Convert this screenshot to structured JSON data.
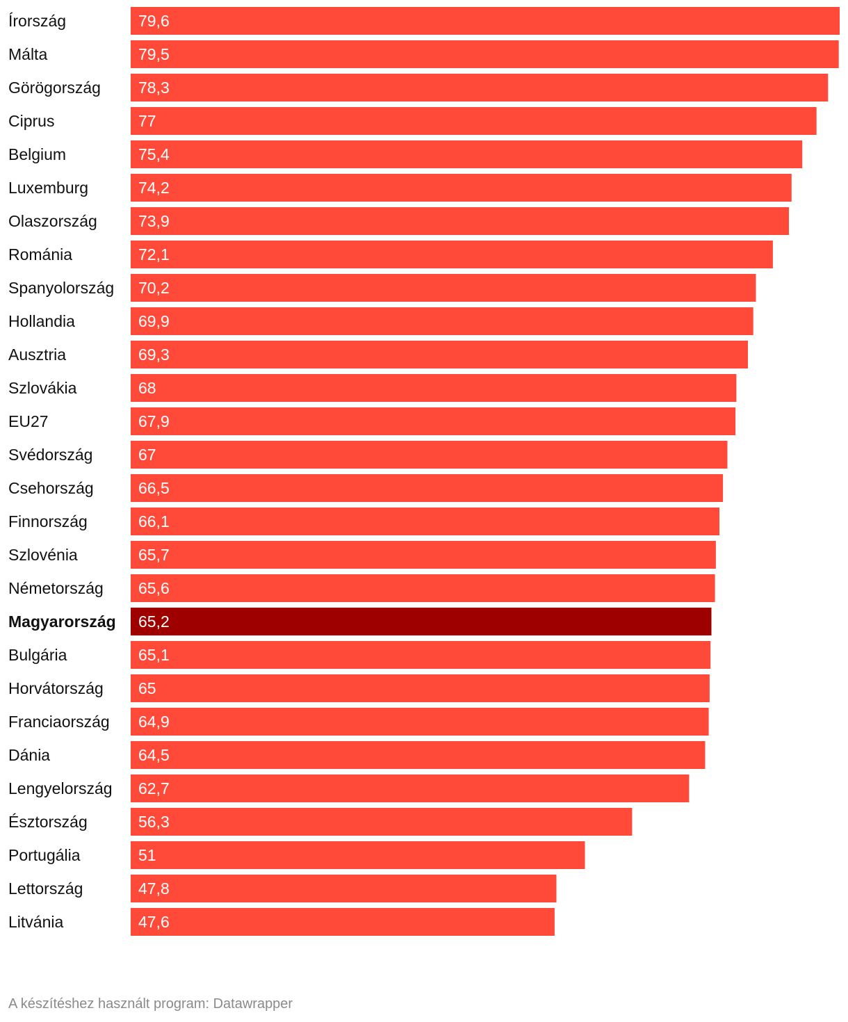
{
  "chart_data": {
    "type": "bar",
    "orientation": "horizontal",
    "title": "",
    "xlabel": "",
    "ylabel": "",
    "xlim": [
      0,
      79.6
    ],
    "grid": false,
    "legend": "none",
    "categories": [
      "Írország",
      "Málta",
      "Görögország",
      "Ciprus",
      "Belgium",
      "Luxemburg",
      "Olaszország",
      "Románia",
      "Spanyolország",
      "Hollandia",
      "Ausztria",
      "Szlovákia",
      "EU27",
      "Svédország",
      "Csehország",
      "Finnország",
      "Szlovénia",
      "Németország",
      "Magyarország",
      "Bulgária",
      "Horvátország",
      "Franciaország",
      "Dánia",
      "Lengyelország",
      "Észtország",
      "Portugália",
      "Lettország",
      "Litvánia"
    ],
    "values": [
      79.6,
      79.5,
      78.3,
      77,
      75.4,
      74.2,
      73.9,
      72.1,
      70.2,
      69.9,
      69.3,
      68,
      67.9,
      67,
      66.5,
      66.1,
      65.7,
      65.6,
      65.2,
      65.1,
      65,
      64.9,
      64.5,
      62.7,
      56.3,
      51,
      47.8,
      47.6
    ],
    "value_labels": [
      "79,6",
      "79,5",
      "78,3",
      "77",
      "75,4",
      "74,2",
      "73,9",
      "72,1",
      "70,2",
      "69,9",
      "69,3",
      "68",
      "67,9",
      "67",
      "66,5",
      "66,1",
      "65,7",
      "65,6",
      "65,2",
      "65,1",
      "65",
      "64,9",
      "64,5",
      "62,7",
      "56,3",
      "51",
      "47,8",
      "47,6"
    ],
    "highlight": "Magyarország",
    "colors": {
      "bar": "#ff4a3a",
      "highlight_bar": "#9e0000",
      "value_text": "#ffffff",
      "label_text": "#111111"
    }
  },
  "footer": {
    "credit": "A készítéshez használt program: Datawrapper"
  }
}
